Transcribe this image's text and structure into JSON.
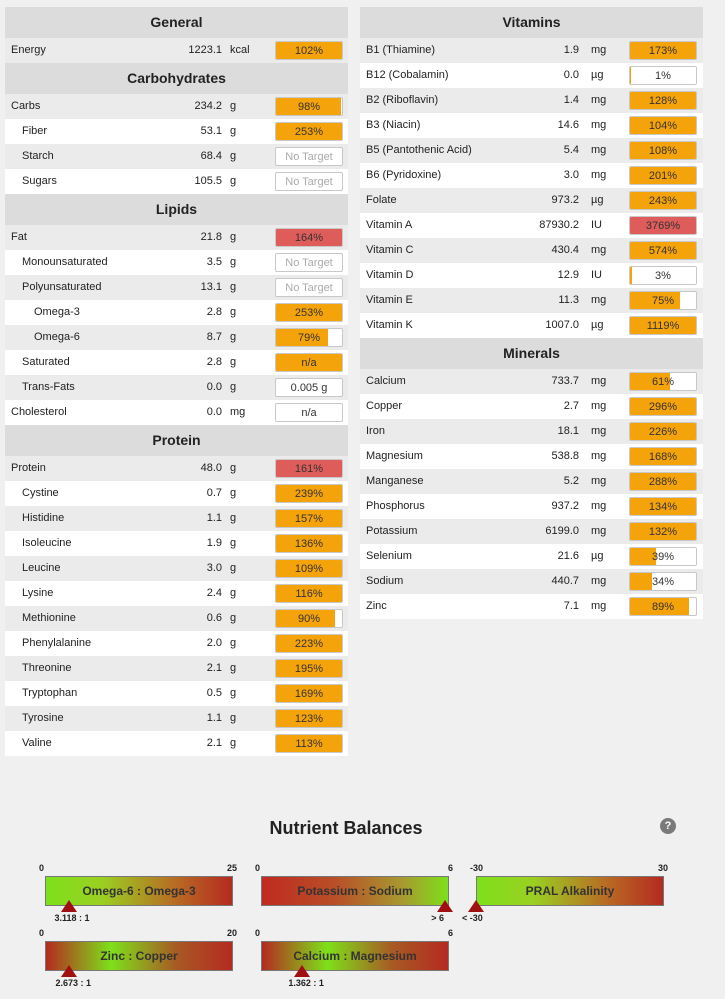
{
  "left": [
    {
      "title": "General",
      "rows": [
        {
          "name": "Energy",
          "indent": 0,
          "amount": "1223.1",
          "unit": "kcal",
          "bar": "102%",
          "pct": 1.0,
          "color": "orange"
        }
      ]
    },
    {
      "title": "Carbohydrates",
      "rows": [
        {
          "name": "Carbs",
          "indent": 0,
          "amount": "234.2",
          "unit": "g",
          "bar": "98%",
          "pct": 0.98,
          "color": "orange"
        },
        {
          "name": "Fiber",
          "indent": 1,
          "amount": "53.1",
          "unit": "g",
          "bar": "253%",
          "pct": 1.0,
          "color": "orange"
        },
        {
          "name": "Starch",
          "indent": 1,
          "amount": "68.4",
          "unit": "g",
          "bar": "No Target",
          "pct": 0,
          "color": "none"
        },
        {
          "name": "Sugars",
          "indent": 1,
          "amount": "105.5",
          "unit": "g",
          "bar": "No Target",
          "pct": 0,
          "color": "none"
        }
      ]
    },
    {
      "title": "Lipids",
      "rows": [
        {
          "name": "Fat",
          "indent": 0,
          "amount": "21.8",
          "unit": "g",
          "bar": "164%",
          "pct": 1.0,
          "color": "red"
        },
        {
          "name": "Monounsaturated",
          "indent": 1,
          "amount": "3.5",
          "unit": "g",
          "bar": "No Target",
          "pct": 0,
          "color": "none"
        },
        {
          "name": "Polyunsaturated",
          "indent": 1,
          "amount": "13.1",
          "unit": "g",
          "bar": "No Target",
          "pct": 0,
          "color": "none"
        },
        {
          "name": "Omega-3",
          "indent": 2,
          "amount": "2.8",
          "unit": "g",
          "bar": "253%",
          "pct": 1.0,
          "color": "orange"
        },
        {
          "name": "Omega-6",
          "indent": 2,
          "amount": "8.7",
          "unit": "g",
          "bar": "79%",
          "pct": 0.79,
          "color": "orange"
        },
        {
          "name": "Saturated",
          "indent": 1,
          "amount": "2.8",
          "unit": "g",
          "bar": "n/a",
          "pct": 1.0,
          "color": "orange"
        },
        {
          "name": "Trans-Fats",
          "indent": 1,
          "amount": "0.0",
          "unit": "g",
          "bar": "0.005 g",
          "pct": 0,
          "color": "none"
        },
        {
          "name": "Cholesterol",
          "indent": 0,
          "amount": "0.0",
          "unit": "mg",
          "bar": "n/a",
          "pct": 0,
          "color": "none"
        }
      ]
    },
    {
      "title": "Protein",
      "rows": [
        {
          "name": "Protein",
          "indent": 0,
          "amount": "48.0",
          "unit": "g",
          "bar": "161%",
          "pct": 1.0,
          "color": "red"
        },
        {
          "name": "Cystine",
          "indent": 1,
          "amount": "0.7",
          "unit": "g",
          "bar": "239%",
          "pct": 1.0,
          "color": "orange"
        },
        {
          "name": "Histidine",
          "indent": 1,
          "amount": "1.1",
          "unit": "g",
          "bar": "157%",
          "pct": 1.0,
          "color": "orange"
        },
        {
          "name": "Isoleucine",
          "indent": 1,
          "amount": "1.9",
          "unit": "g",
          "bar": "136%",
          "pct": 1.0,
          "color": "orange"
        },
        {
          "name": "Leucine",
          "indent": 1,
          "amount": "3.0",
          "unit": "g",
          "bar": "109%",
          "pct": 1.0,
          "color": "orange"
        },
        {
          "name": "Lysine",
          "indent": 1,
          "amount": "2.4",
          "unit": "g",
          "bar": "116%",
          "pct": 1.0,
          "color": "orange"
        },
        {
          "name": "Methionine",
          "indent": 1,
          "amount": "0.6",
          "unit": "g",
          "bar": "90%",
          "pct": 0.9,
          "color": "orange"
        },
        {
          "name": "Phenylalanine",
          "indent": 1,
          "amount": "2.0",
          "unit": "g",
          "bar": "223%",
          "pct": 1.0,
          "color": "orange"
        },
        {
          "name": "Threonine",
          "indent": 1,
          "amount": "2.1",
          "unit": "g",
          "bar": "195%",
          "pct": 1.0,
          "color": "orange"
        },
        {
          "name": "Tryptophan",
          "indent": 1,
          "amount": "0.5",
          "unit": "g",
          "bar": "169%",
          "pct": 1.0,
          "color": "orange"
        },
        {
          "name": "Tyrosine",
          "indent": 1,
          "amount": "1.1",
          "unit": "g",
          "bar": "123%",
          "pct": 1.0,
          "color": "orange"
        },
        {
          "name": "Valine",
          "indent": 1,
          "amount": "2.1",
          "unit": "g",
          "bar": "113%",
          "pct": 1.0,
          "color": "orange"
        }
      ]
    }
  ],
  "right": [
    {
      "title": "Vitamins",
      "rows": [
        {
          "name": "B1 (Thiamine)",
          "indent": 0,
          "amount": "1.9",
          "unit": "mg",
          "bar": "173%",
          "pct": 1.0,
          "color": "orange"
        },
        {
          "name": "B12 (Cobalamin)",
          "indent": 0,
          "amount": "0.0",
          "unit": "µg",
          "bar": "1%",
          "pct": 0.02,
          "color": "orange"
        },
        {
          "name": "B2 (Riboflavin)",
          "indent": 0,
          "amount": "1.4",
          "unit": "mg",
          "bar": "128%",
          "pct": 1.0,
          "color": "orange"
        },
        {
          "name": "B3 (Niacin)",
          "indent": 0,
          "amount": "14.6",
          "unit": "mg",
          "bar": "104%",
          "pct": 1.0,
          "color": "orange"
        },
        {
          "name": "B5 (Pantothenic Acid)",
          "indent": 0,
          "amount": "5.4",
          "unit": "mg",
          "bar": "108%",
          "pct": 1.0,
          "color": "orange"
        },
        {
          "name": "B6 (Pyridoxine)",
          "indent": 0,
          "amount": "3.0",
          "unit": "mg",
          "bar": "201%",
          "pct": 1.0,
          "color": "orange"
        },
        {
          "name": "Folate",
          "indent": 0,
          "amount": "973.2",
          "unit": "µg",
          "bar": "243%",
          "pct": 1.0,
          "color": "orange"
        },
        {
          "name": "Vitamin A",
          "indent": 0,
          "amount": "87930.2",
          "unit": "IU",
          "bar": "3769%",
          "pct": 1.0,
          "color": "red"
        },
        {
          "name": "Vitamin C",
          "indent": 0,
          "amount": "430.4",
          "unit": "mg",
          "bar": "574%",
          "pct": 1.0,
          "color": "orange"
        },
        {
          "name": "Vitamin D",
          "indent": 0,
          "amount": "12.9",
          "unit": "IU",
          "bar": "3%",
          "pct": 0.03,
          "color": "orange"
        },
        {
          "name": "Vitamin E",
          "indent": 0,
          "amount": "11.3",
          "unit": "mg",
          "bar": "75%",
          "pct": 0.75,
          "color": "orange"
        },
        {
          "name": "Vitamin K",
          "indent": 0,
          "amount": "1007.0",
          "unit": "µg",
          "bar": "1119%",
          "pct": 1.0,
          "color": "orange"
        }
      ]
    },
    {
      "title": "Minerals",
      "rows": [
        {
          "name": "Calcium",
          "indent": 0,
          "amount": "733.7",
          "unit": "mg",
          "bar": "61%",
          "pct": 0.61,
          "color": "orange"
        },
        {
          "name": "Copper",
          "indent": 0,
          "amount": "2.7",
          "unit": "mg",
          "bar": "296%",
          "pct": 1.0,
          "color": "orange"
        },
        {
          "name": "Iron",
          "indent": 0,
          "amount": "18.1",
          "unit": "mg",
          "bar": "226%",
          "pct": 1.0,
          "color": "orange"
        },
        {
          "name": "Magnesium",
          "indent": 0,
          "amount": "538.8",
          "unit": "mg",
          "bar": "168%",
          "pct": 1.0,
          "color": "orange"
        },
        {
          "name": "Manganese",
          "indent": 0,
          "amount": "5.2",
          "unit": "mg",
          "bar": "288%",
          "pct": 1.0,
          "color": "orange"
        },
        {
          "name": "Phosphorus",
          "indent": 0,
          "amount": "937.2",
          "unit": "mg",
          "bar": "134%",
          "pct": 1.0,
          "color": "orange"
        },
        {
          "name": "Potassium",
          "indent": 0,
          "amount": "6199.0",
          "unit": "mg",
          "bar": "132%",
          "pct": 1.0,
          "color": "orange"
        },
        {
          "name": "Selenium",
          "indent": 0,
          "amount": "21.6",
          "unit": "µg",
          "bar": "39%",
          "pct": 0.39,
          "color": "orange"
        },
        {
          "name": "Sodium",
          "indent": 0,
          "amount": "440.7",
          "unit": "mg",
          "bar": "34%",
          "pct": 0.34,
          "color": "orange"
        },
        {
          "name": "Zinc",
          "indent": 0,
          "amount": "7.1",
          "unit": "mg",
          "bar": "89%",
          "pct": 0.89,
          "color": "orange"
        }
      ]
    }
  ],
  "balances": {
    "title": "Nutrient Balances",
    "help": "?",
    "gauges": [
      {
        "label": "Omega-6 : Omega-3",
        "min": "0",
        "max": "25",
        "value": "3.118 : 1",
        "pos": 0.125,
        "gradient": "green-left"
      },
      {
        "label": "Potassium : Sodium",
        "min": "0",
        "max": "6",
        "value": "> 6",
        "pos": 0.98,
        "gradient": "red-green-right"
      },
      {
        "label": "PRAL Alkalinity",
        "min": "-30",
        "max": "30",
        "value": "< -30",
        "pos": 0.0,
        "gradient": "green-left"
      },
      {
        "label": "Zinc : Copper",
        "min": "0",
        "max": "20",
        "value": "2.673 : 1",
        "pos": 0.13,
        "gradient": "green-center-left"
      },
      {
        "label": "Calcium : Magnesium",
        "min": "0",
        "max": "6",
        "value": "1.362 : 1",
        "pos": 0.22,
        "gradient": "green-center-left"
      }
    ]
  },
  "colors": {
    "orange": "#f5a30a",
    "red": "#de5c5a",
    "green": "#7ee01a",
    "darkred": "#a01010"
  }
}
